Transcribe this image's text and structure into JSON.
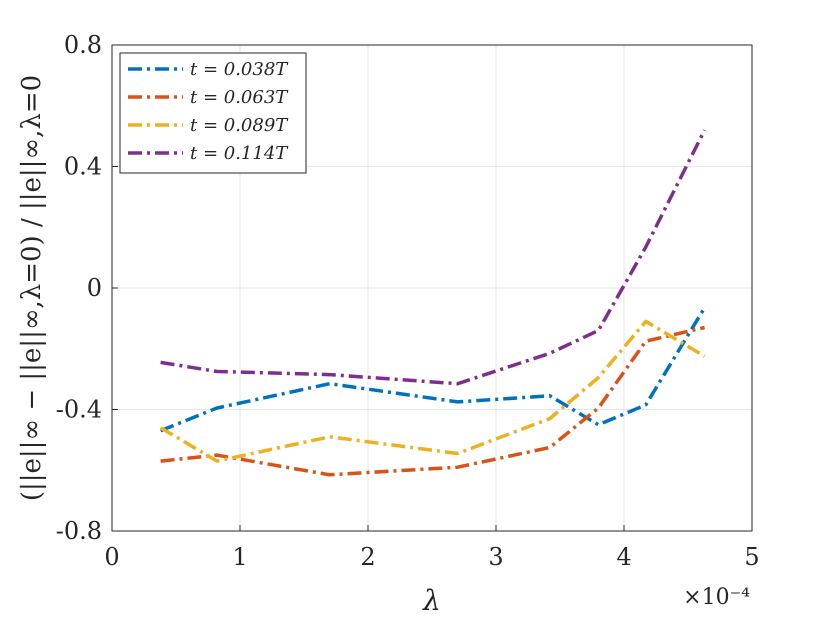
{
  "chart_data": {
    "type": "line",
    "xlabel": "λ",
    "ylabel": "(||e||∞ − ||e||∞,λ=0) / ||e||∞,λ=0",
    "x_exponent_label": "×10⁻⁴",
    "xlim": [
      0,
      5
    ],
    "ylim": [
      -0.8,
      0.8
    ],
    "x_ticks": [
      0,
      1,
      2,
      3,
      4,
      5
    ],
    "x_tick_labels": [
      "0",
      "1",
      "2",
      "3",
      "4",
      "5"
    ],
    "y_ticks": [
      -0.8,
      -0.4,
      0,
      0.4,
      0.8
    ],
    "y_tick_labels": [
      "-0.8",
      "-0.4",
      "0",
      "0.4",
      "0.8"
    ],
    "grid": true,
    "legend_position": "top-left",
    "x": [
      0.38,
      0.82,
      1.7,
      2.7,
      3.42,
      3.8,
      4.17,
      4.63
    ],
    "series": [
      {
        "name": "t = 0.038T",
        "color": "#0072BD",
        "values": [
          -0.47,
          -0.395,
          -0.315,
          -0.375,
          -0.355,
          -0.45,
          -0.385,
          -0.065
        ]
      },
      {
        "name": "t = 0.063T",
        "color": "#D95319",
        "values": [
          -0.57,
          -0.55,
          -0.615,
          -0.59,
          -0.525,
          -0.395,
          -0.175,
          -0.13
        ]
      },
      {
        "name": "t = 0.089T",
        "color": "#EDB120",
        "values": [
          -0.46,
          -0.57,
          -0.49,
          -0.545,
          -0.43,
          -0.295,
          -0.11,
          -0.225
        ]
      },
      {
        "name": "t = 0.114T",
        "color": "#7E2F8E",
        "values": [
          -0.245,
          -0.275,
          -0.285,
          -0.315,
          -0.215,
          -0.14,
          0.135,
          0.52
        ]
      }
    ]
  }
}
